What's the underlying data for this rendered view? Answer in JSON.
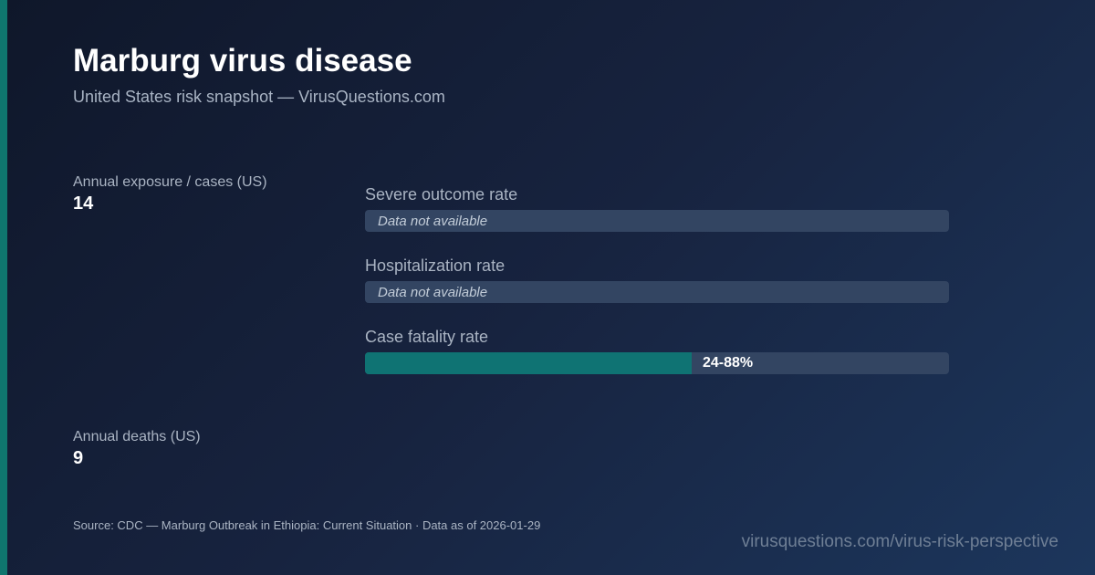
{
  "header": {
    "title": "Marburg virus disease",
    "subtitle": "United States risk snapshot — VirusQuestions.com"
  },
  "stats": {
    "cases": {
      "label": "Annual exposure / cases (US)",
      "value": "14"
    },
    "deaths": {
      "label": "Annual deaths (US)",
      "value": "9"
    }
  },
  "metrics": [
    {
      "label": "Severe outcome rate",
      "value_text": "Data not available"
    },
    {
      "label": "Hospitalization rate",
      "value_text": "Data not available"
    },
    {
      "label": "Case fatality rate",
      "value_text": "24-88%",
      "fill_fraction": 0.56
    }
  ],
  "footer": {
    "source": "Source: CDC — Marburg Outbreak in Ethiopia: Current Situation · Data as of 2026-01-29",
    "url": "virusquestions.com/virus-risk-perspective"
  },
  "colors": {
    "accent": "#0f766e",
    "bar_fill": "#0f7373",
    "bar_track": "#334562"
  }
}
